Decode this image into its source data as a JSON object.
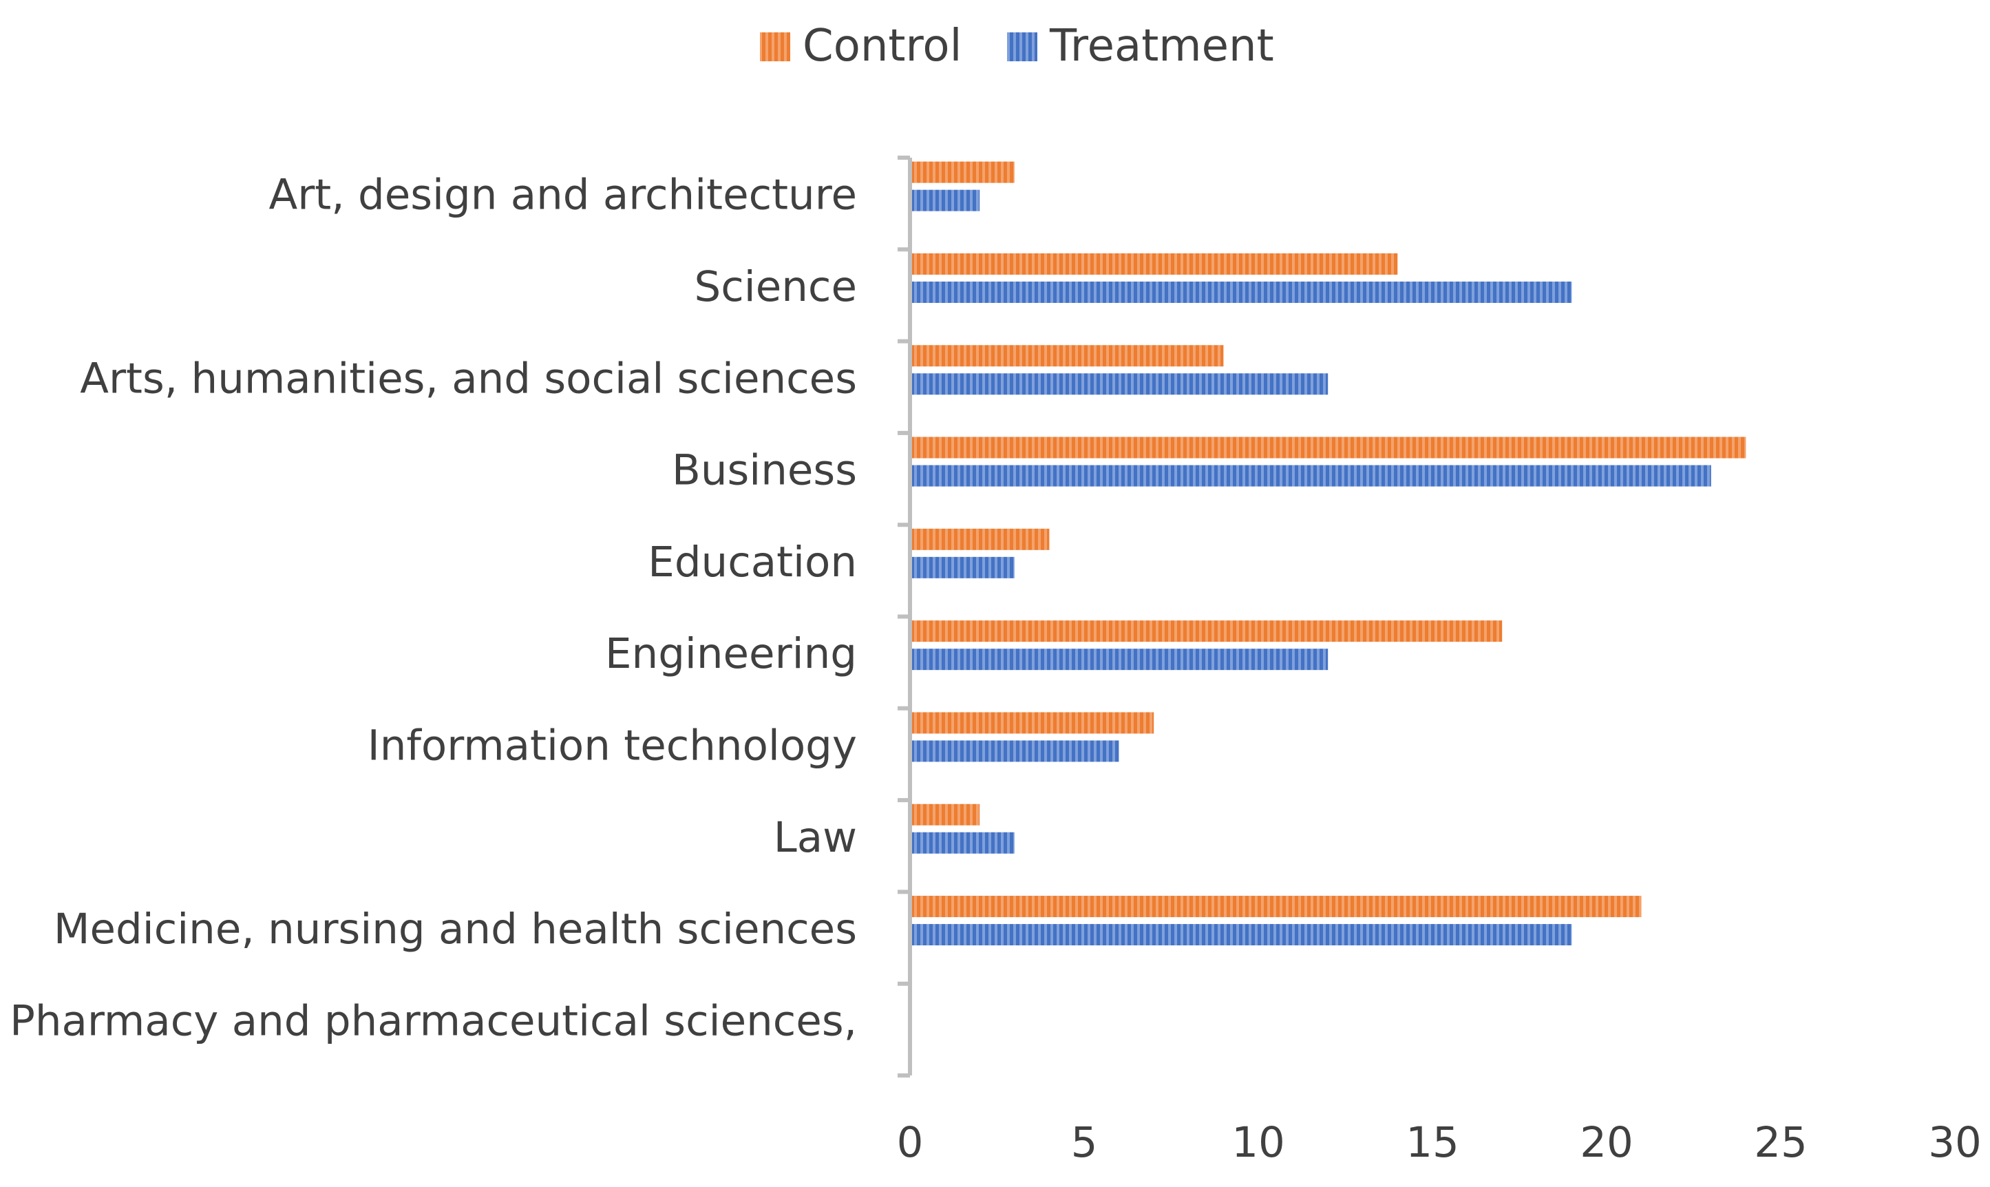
{
  "chart_data": {
    "type": "bar",
    "orientation": "horizontal",
    "title": "",
    "xlabel": "",
    "ylabel": "",
    "xlim": [
      0,
      30
    ],
    "xticks": [
      "0",
      "5",
      "10",
      "15",
      "20",
      "25",
      "30"
    ],
    "grid": false,
    "legend": "top-center",
    "categories": [
      "Art, design and architecture",
      "Science",
      "Arts, humanities, and social sciences",
      "Business",
      "Education",
      "Engineering",
      "Information technology",
      "Law",
      "Medicine, nursing and health sciences",
      "Pharmacy and pharmaceutical sciences,"
    ],
    "series": [
      {
        "name": "Control",
        "color": "#ED7D31",
        "values": [
          3,
          14,
          9,
          24,
          4,
          17,
          7,
          2,
          21,
          0
        ]
      },
      {
        "name": "Treatment",
        "color": "#4472C4",
        "values": [
          2,
          19,
          12,
          23,
          3,
          12,
          6,
          3,
          19,
          0
        ]
      }
    ]
  }
}
